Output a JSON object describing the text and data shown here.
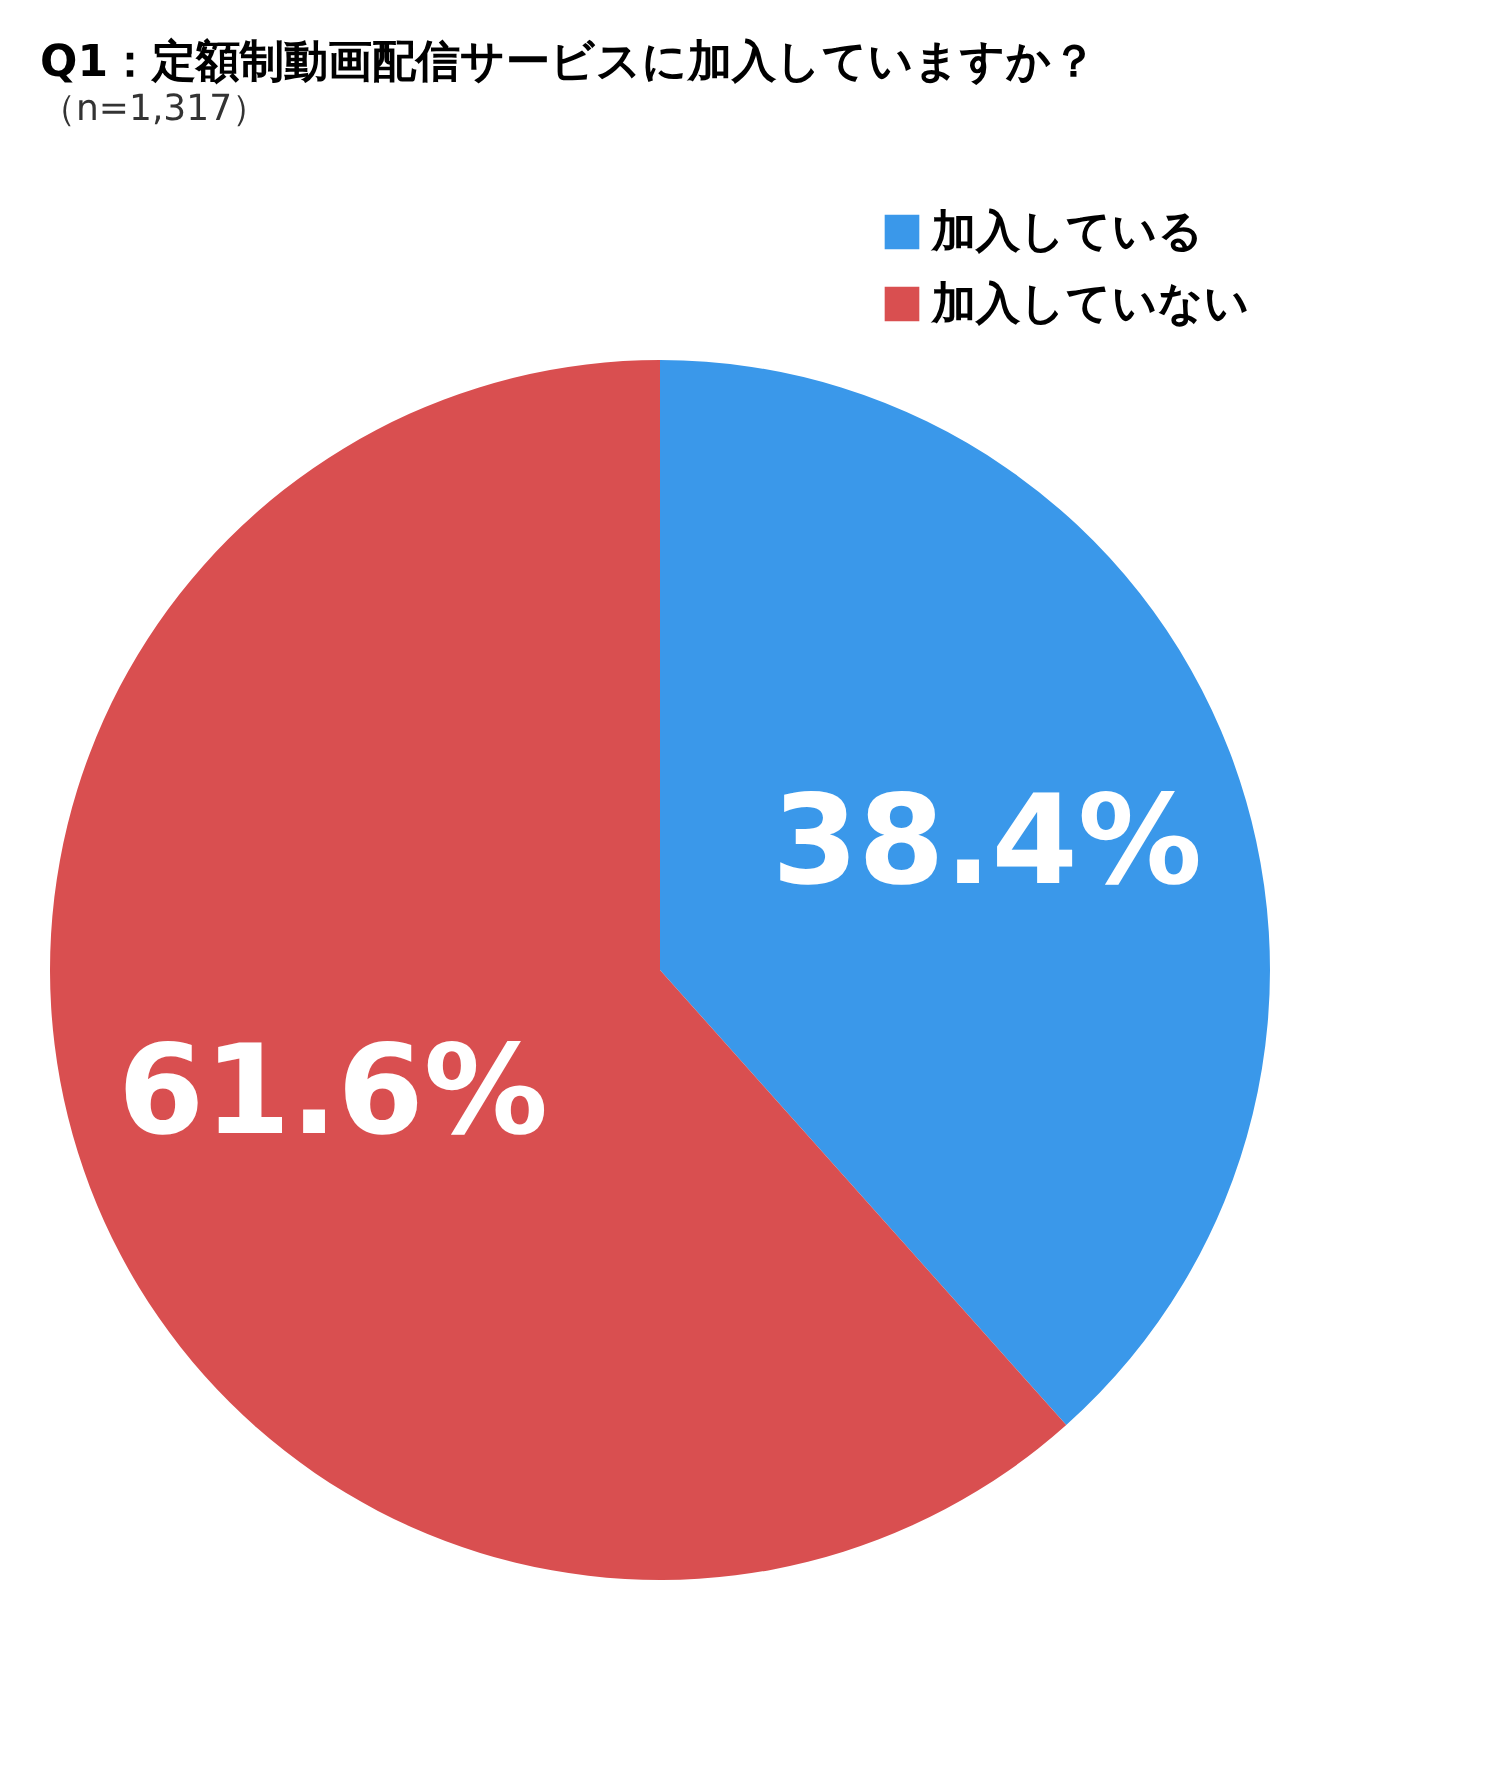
{
  "chart_data": {
    "type": "pie",
    "title": "Q1：定額制動画配信サービスに加入していますか？",
    "subtitle": "（n=1,317）",
    "categories": [
      "加入している",
      "加入していない"
    ],
    "values": [
      38.4,
      61.6
    ],
    "colors": [
      "#3a98ea",
      "#d94f50"
    ],
    "value_labels": [
      "38.4%",
      "61.6%"
    ],
    "legend": "top right"
  }
}
